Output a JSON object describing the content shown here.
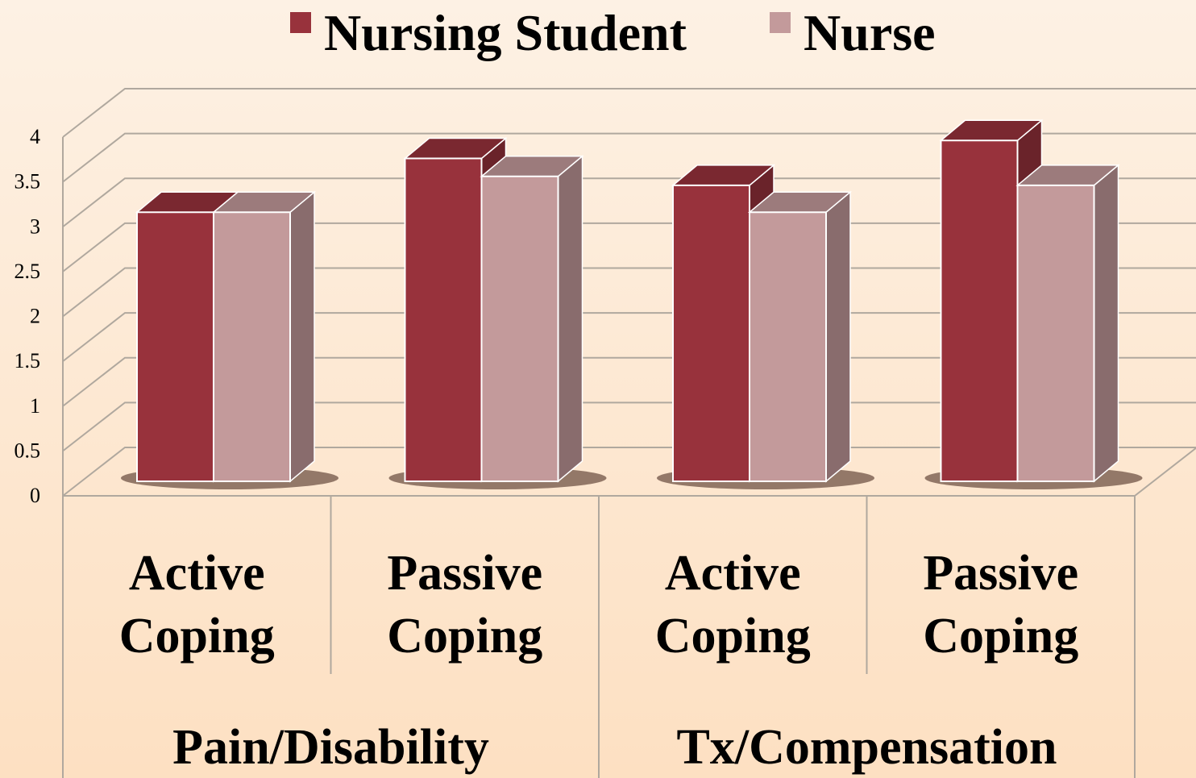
{
  "chart_data": {
    "type": "bar3d",
    "categories": [
      "Active Coping",
      "Passive Coping",
      "Active Coping",
      "Passive Coping"
    ],
    "group_labels": [
      "Pain/Disability",
      "Tx/Compensation"
    ],
    "series": [
      {
        "name": "Nursing Student",
        "color": "#98323c",
        "values": [
          3.0,
          3.6,
          3.3,
          3.8
        ]
      },
      {
        "name": "Nurse",
        "color": "#c39a9b",
        "values": [
          3.0,
          3.4,
          3.0,
          3.3
        ]
      }
    ],
    "ylim": [
      0,
      4
    ],
    "yticks": [
      0,
      0.5,
      1,
      1.5,
      2,
      2.5,
      3,
      3.5,
      4
    ],
    "grid": true,
    "legend": "top"
  }
}
